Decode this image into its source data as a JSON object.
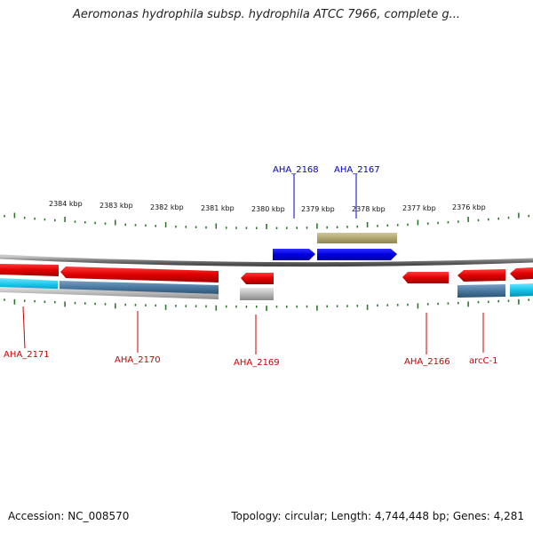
{
  "title": "Aeromonas hydrophila subsp. hydrophila ATCC 7966, complete g...",
  "footer": {
    "accession": "Accession: NC_008570",
    "stats": "Topology: circular; Length: 4,744,448 bp; Genes: 4,281"
  },
  "colors": {
    "forward_gene": "#0000dd",
    "reverse_gene": "#dd0000",
    "rna_feature": "#b5ad78",
    "forward_orf": "#00c8e8",
    "reverse_orf": "#4a78a0",
    "tick": "#2a7a2a",
    "backbone": "#8a8a8a"
  },
  "scale": {
    "unit": "kbp",
    "labels": [
      "2384 kbp",
      "2383 kbp",
      "2382 kbp",
      "2381 kbp",
      "2380 kbp",
      "2379 kbp",
      "2378 kbp",
      "2377 kbp",
      "2376 kbp"
    ]
  },
  "genes": [
    {
      "name": "AHA_2171",
      "strand": "reverse"
    },
    {
      "name": "AHA_2170",
      "strand": "reverse"
    },
    {
      "name": "AHA_2169",
      "strand": "reverse"
    },
    {
      "name": "AHA_2168",
      "strand": "forward"
    },
    {
      "name": "AHA_2167",
      "strand": "forward"
    },
    {
      "name": "AHA_2166",
      "strand": "reverse"
    },
    {
      "name": "arcC-1",
      "strand": "reverse"
    }
  ]
}
